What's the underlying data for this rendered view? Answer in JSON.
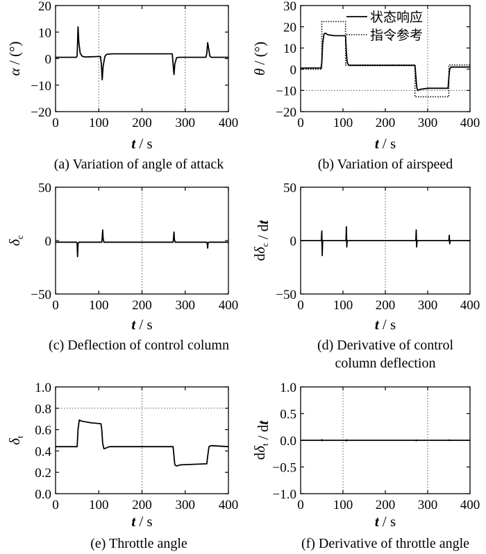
{
  "chart_data": [
    {
      "id": "a",
      "type": "line",
      "caption": "(a) Variation of angle of attack",
      "xlabel": "t / s",
      "ylabel": "α / (°)",
      "xlim": [
        0,
        400
      ],
      "ylim": [
        -20,
        20
      ],
      "xticks": [
        0,
        100,
        200,
        300,
        400
      ],
      "yticks": [
        -20,
        -10,
        0,
        10,
        20
      ],
      "vlines": [
        100,
        300
      ],
      "hlines": [],
      "series": [
        {
          "style": "solid",
          "points": [
            [
              0,
              0.5
            ],
            [
              48,
              0.5
            ],
            [
              50,
              1
            ],
            [
              52,
              12
            ],
            [
              54,
              6
            ],
            [
              57,
              2
            ],
            [
              62,
              0.8
            ],
            [
              70,
              0.6
            ],
            [
              104,
              0.8
            ],
            [
              106,
              -2
            ],
            [
              108,
              -8
            ],
            [
              110,
              -3
            ],
            [
              114,
              0.8
            ],
            [
              118,
              1.6
            ],
            [
              130,
              1.8
            ],
            [
              200,
              1.8
            ],
            [
              270,
              1.8
            ],
            [
              272,
              -2
            ],
            [
              274,
              -6
            ],
            [
              276,
              -2
            ],
            [
              280,
              0.3
            ],
            [
              285,
              0.5
            ],
            [
              348,
              0.5
            ],
            [
              350,
              2
            ],
            [
              352,
              6
            ],
            [
              354,
              4
            ],
            [
              357,
              1
            ],
            [
              360,
              0.5
            ],
            [
              400,
              0.5
            ]
          ]
        }
      ]
    },
    {
      "id": "b",
      "type": "line",
      "caption": "(b) Variation of airspeed",
      "xlabel": "t / s",
      "ylabel": "θ / (°)",
      "xlim": [
        0,
        400
      ],
      "ylim": [
        -20,
        30
      ],
      "xticks": [
        0,
        100,
        200,
        300,
        400
      ],
      "yticks": [
        -20,
        -10,
        0,
        10,
        20,
        30
      ],
      "vlines": [
        300
      ],
      "hlines": [
        -10
      ],
      "legend": {
        "position": "top-right",
        "entries": [
          {
            "label": "状态响应",
            "style": "solid"
          },
          {
            "label": "指令参考",
            "style": "dotted"
          }
        ]
      },
      "series": [
        {
          "name": "状态响应",
          "style": "solid",
          "points": [
            [
              0,
              0.5
            ],
            [
              48,
              0.6
            ],
            [
              50,
              3
            ],
            [
              52,
              12
            ],
            [
              55,
              16.5
            ],
            [
              58,
              17
            ],
            [
              65,
              16.2
            ],
            [
              80,
              15.8
            ],
            [
              106,
              15.8
            ],
            [
              108,
              8
            ],
            [
              110,
              3
            ],
            [
              114,
              1.8
            ],
            [
              130,
              1.8
            ],
            [
              200,
              1.8
            ],
            [
              270,
              1.8
            ],
            [
              272,
              -3
            ],
            [
              274,
              -8
            ],
            [
              276,
              -10
            ],
            [
              282,
              -9.5
            ],
            [
              300,
              -9
            ],
            [
              348,
              -9
            ],
            [
              350,
              -4
            ],
            [
              352,
              0
            ],
            [
              355,
              1
            ],
            [
              360,
              1
            ],
            [
              400,
              1
            ]
          ]
        },
        {
          "name": "指令参考",
          "style": "dotted",
          "points": [
            [
              0,
              0
            ],
            [
              50,
              0
            ],
            [
              50,
              22.5
            ],
            [
              106,
              22.5
            ],
            [
              106,
              2
            ],
            [
              270,
              2
            ],
            [
              270,
              -13
            ],
            [
              350,
              -13
            ],
            [
              350,
              2
            ],
            [
              400,
              2
            ]
          ]
        }
      ]
    },
    {
      "id": "c",
      "type": "line",
      "caption": "(c) Deflection of control column",
      "xlabel": "t / s",
      "ylabel": "δc",
      "xlim": [
        0,
        400
      ],
      "ylim": [
        -50,
        50
      ],
      "xticks": [
        0,
        100,
        200,
        300,
        400
      ],
      "yticks": [
        -50,
        0,
        50
      ],
      "vlines": [
        200
      ],
      "hlines": [],
      "series": [
        {
          "style": "solid",
          "points": [
            [
              0,
              -1.5
            ],
            [
              49,
              -1.5
            ],
            [
              50,
              -3
            ],
            [
              51,
              -15
            ],
            [
              52,
              -3
            ],
            [
              54,
              -1.5
            ],
            [
              107,
              -1.5
            ],
            [
              108,
              2
            ],
            [
              109,
              10
            ],
            [
              110,
              2
            ],
            [
              112,
              -1.5
            ],
            [
              272,
              -1.5
            ],
            [
              273,
              2
            ],
            [
              274,
              8
            ],
            [
              275,
              1
            ],
            [
              277,
              -1.5
            ],
            [
              350,
              -1.5
            ],
            [
              351,
              -3
            ],
            [
              352,
              -7
            ],
            [
              353,
              -2
            ],
            [
              355,
              -1.5
            ],
            [
              400,
              -1.5
            ]
          ]
        }
      ]
    },
    {
      "id": "d",
      "type": "line",
      "caption": "(d) Derivative of control column deflection",
      "xlabel": "t / s",
      "ylabel": "dδc / dt",
      "xlim": [
        0,
        400
      ],
      "ylim": [
        -50,
        50
      ],
      "xticks": [
        0,
        100,
        200,
        300,
        400
      ],
      "yticks": [
        -50,
        0,
        50
      ],
      "vlines": [
        200
      ],
      "hlines": [],
      "series": [
        {
          "style": "solid",
          "points": [
            [
              0,
              0
            ],
            [
              49,
              0
            ],
            [
              50,
              9
            ],
            [
              51,
              -14
            ],
            [
              52,
              0
            ],
            [
              107,
              0
            ],
            [
              108,
              13
            ],
            [
              109,
              -6
            ],
            [
              110,
              0
            ],
            [
              272,
              0
            ],
            [
              273,
              10
            ],
            [
              274,
              -6
            ],
            [
              275,
              0
            ],
            [
              350,
              0
            ],
            [
              351,
              5
            ],
            [
              352,
              -3
            ],
            [
              353,
              0
            ],
            [
              400,
              0
            ]
          ]
        }
      ]
    },
    {
      "id": "e",
      "type": "line",
      "caption": "(e) Throttle angle",
      "xlabel": "t / s",
      "ylabel": "δt",
      "xlim": [
        0,
        400
      ],
      "ylim": [
        0.0,
        1.0
      ],
      "xticks": [
        0,
        100,
        200,
        300,
        400
      ],
      "yticks": [
        0.0,
        0.2,
        0.4,
        0.6,
        0.8,
        1.0
      ],
      "vlines": [
        200
      ],
      "hlines": [
        0.8
      ],
      "series": [
        {
          "style": "solid",
          "points": [
            [
              0,
              0.44
            ],
            [
              50,
              0.44
            ],
            [
              52,
              0.6
            ],
            [
              55,
              0.69
            ],
            [
              60,
              0.68
            ],
            [
              80,
              0.665
            ],
            [
              105,
              0.655
            ],
            [
              107,
              0.6
            ],
            [
              109,
              0.47
            ],
            [
              112,
              0.42
            ],
            [
              118,
              0.43
            ],
            [
              125,
              0.44
            ],
            [
              272,
              0.44
            ],
            [
              274,
              0.35
            ],
            [
              276,
              0.27
            ],
            [
              280,
              0.26
            ],
            [
              290,
              0.27
            ],
            [
              350,
              0.28
            ],
            [
              352,
              0.35
            ],
            [
              355,
              0.44
            ],
            [
              360,
              0.45
            ],
            [
              400,
              0.44
            ]
          ]
        }
      ]
    },
    {
      "id": "f",
      "type": "line",
      "caption": "(f) Derivative of throttle angle",
      "xlabel": "t / s",
      "ylabel": "dδt / dt",
      "xlim": [
        0,
        400
      ],
      "ylim": [
        -1.0,
        1.0
      ],
      "xticks": [
        0,
        100,
        200,
        300,
        400
      ],
      "yticks": [
        -1.0,
        -0.5,
        0.0,
        0.5,
        1.0
      ],
      "vlines": [
        100,
        300
      ],
      "hlines": [],
      "series": [
        {
          "style": "solid",
          "points": [
            [
              0,
              0
            ],
            [
              49,
              0
            ],
            [
              50,
              0.012
            ],
            [
              51,
              -0.008
            ],
            [
              52,
              0
            ],
            [
              107,
              0
            ],
            [
              108,
              -0.01
            ],
            [
              109,
              0.006
            ],
            [
              110,
              0
            ],
            [
              272,
              0
            ],
            [
              273,
              -0.008
            ],
            [
              274,
              0.004
            ],
            [
              275,
              0
            ],
            [
              350,
              0
            ],
            [
              351,
              0.008
            ],
            [
              352,
              -0.004
            ],
            [
              353,
              0
            ],
            [
              400,
              0
            ]
          ]
        }
      ]
    }
  ]
}
